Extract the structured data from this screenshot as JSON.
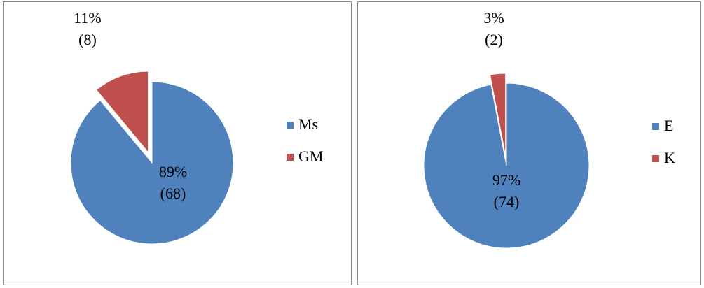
{
  "chart_data": [
    {
      "type": "pie",
      "title": "",
      "legend_position": "right",
      "slices": [
        {
          "label": "Ms",
          "percent": 89,
          "count": 68,
          "percent_label": "89%",
          "count_label": "(68)",
          "color": "#4f81bd",
          "exploded": false
        },
        {
          "label": "GM",
          "percent": 11,
          "count": 8,
          "percent_label": "11%",
          "count_label": "(8)",
          "color": "#c0504d",
          "exploded": true
        }
      ]
    },
    {
      "type": "pie",
      "title": "",
      "legend_position": "right",
      "slices": [
        {
          "label": "E",
          "percent": 97,
          "count": 74,
          "percent_label": "97%",
          "count_label": "(74)",
          "color": "#4f81bd",
          "exploded": false
        },
        {
          "label": "K",
          "percent": 3,
          "count": 2,
          "percent_label": "3%",
          "count_label": "(2)",
          "color": "#c0504d",
          "exploded": true
        }
      ]
    }
  ]
}
